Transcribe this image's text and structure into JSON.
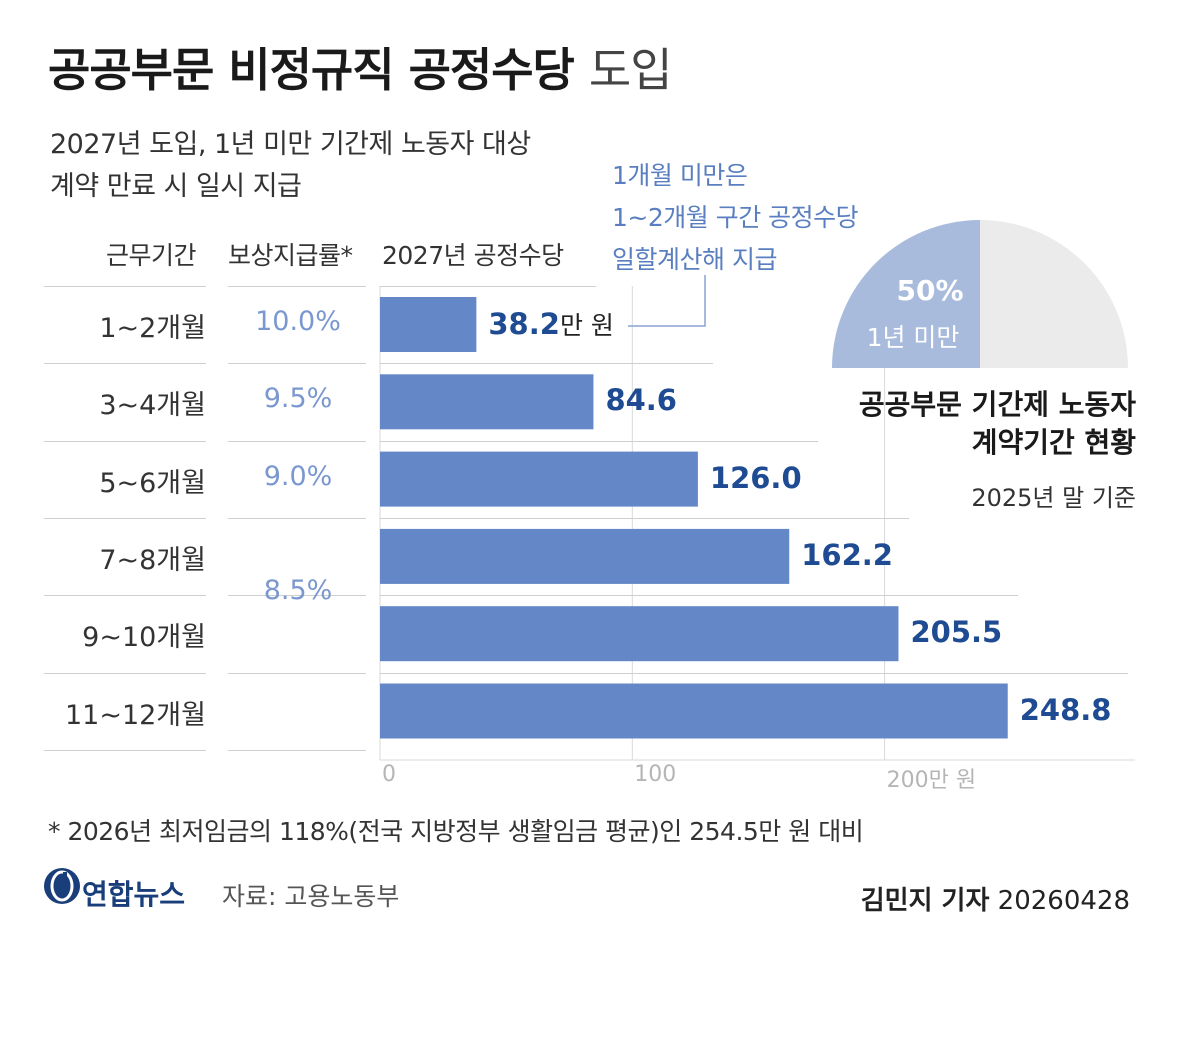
{
  "title": {
    "main": "공공부문 비정규직 공정수당",
    "light": "도입"
  },
  "subtitle": {
    "line1": "2027년 도입, 1년 미만 기간제 노동자 대상",
    "line2": "계약 만료 시 일시 지급"
  },
  "columns": {
    "period": "근무기간",
    "rate": "보상지급률*",
    "amount": "2027년 공정수당"
  },
  "note": {
    "line1": "1개월 미만은",
    "line2": "1~2개월 구간 공정수당",
    "line3": "일할계산해 지급"
  },
  "chart_data": {
    "type": "bar",
    "orientation": "horizontal",
    "categories": [
      "1~2개월",
      "3~4개월",
      "5~6개월",
      "7~8개월",
      "9~10개월",
      "11~12개월"
    ],
    "values": [
      38.2,
      84.6,
      126.0,
      162.2,
      205.5,
      248.8
    ],
    "value_labels": [
      "38.2",
      "84.6",
      "126.0",
      "162.2",
      "205.5",
      "248.8"
    ],
    "first_value_unit": "만 원",
    "rates": [
      "10.0%",
      "9.5%",
      "9.0%",
      "",
      "8.5%",
      ""
    ],
    "xlim": [
      0,
      300
    ],
    "ticks": [
      "0",
      "100",
      "200만 원"
    ],
    "tick_values": [
      0,
      100,
      200
    ],
    "grid": true,
    "bar_color": "#6487c7",
    "value_color": "#1e4b92"
  },
  "pie": {
    "title_line1": "공공부문 기간제 노동자",
    "title_line2": "계약기간 현황",
    "basis": "2025년 말 기준",
    "percent_label": "50%",
    "segment_label": "1년 미만",
    "value": 50,
    "highlight_color": "#a9bbdc",
    "rest_color": "#ebebeb"
  },
  "footnote": "* 2026년 최저임금의 118%(전국 지방정부 생활임금 평균)인  254.5만 원 대비",
  "logo": {
    "name": "연합뉴스",
    "icon": "yonhap-logo-icon"
  },
  "source": "자료: 고용노동부",
  "credit": {
    "reporter": "김민지 기자",
    "date": "20260428"
  }
}
